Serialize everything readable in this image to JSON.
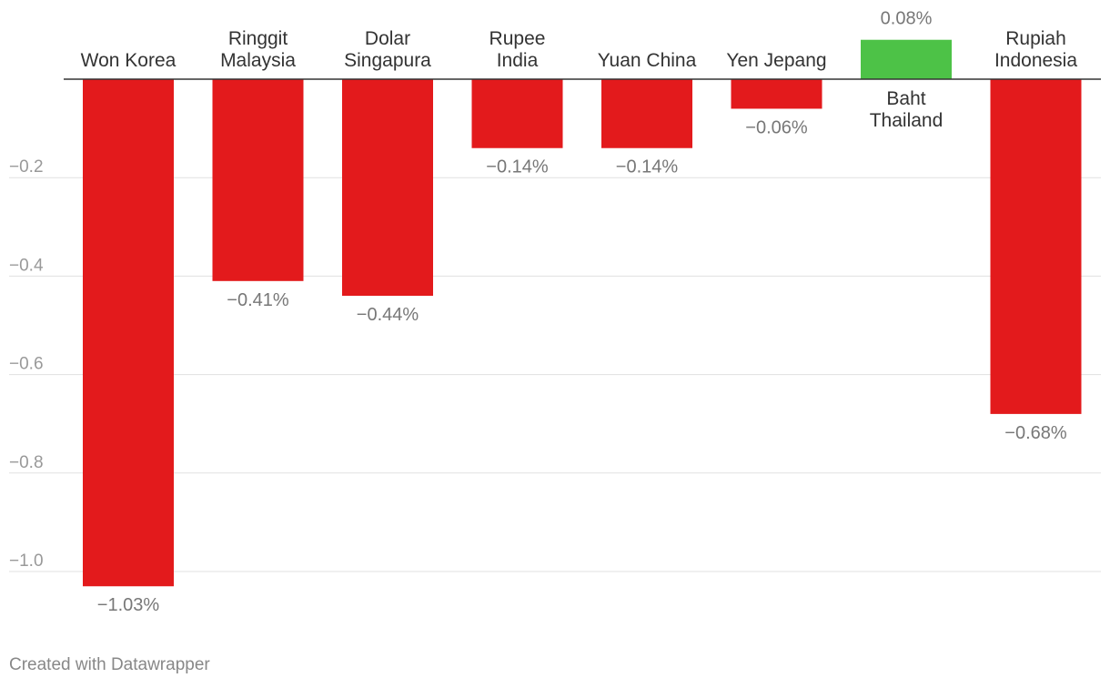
{
  "credit": "Created with Datawrapper",
  "colors": {
    "negative": "#e31a1c",
    "positive": "#4dc247",
    "grid": "#e1e1e1",
    "baseline": "#333333",
    "category_text": "#333333",
    "tick_text": "#999999",
    "value_text": "#777777"
  },
  "chart_data": {
    "type": "bar",
    "title": "",
    "xlabel": "",
    "ylabel": "",
    "categories": [
      [
        "Won Korea"
      ],
      [
        "Ringgit",
        "Malaysia"
      ],
      [
        "Dolar",
        "Singapura"
      ],
      [
        "Rupee",
        "India"
      ],
      [
        "Yuan China"
      ],
      [
        "Yen Jepang"
      ],
      [
        "Baht",
        "Thailand"
      ],
      [
        "Rupiah",
        "Indonesia"
      ]
    ],
    "values": [
      -1.03,
      -0.41,
      -0.44,
      -0.14,
      -0.14,
      -0.06,
      0.08,
      -0.68
    ],
    "value_labels": [
      "−1.03%",
      "−0.41%",
      "−0.44%",
      "−0.14%",
      "−0.14%",
      "−0.06%",
      "0.08%",
      "−0.68%"
    ],
    "yticks": [
      -0.2,
      -0.4,
      -0.6,
      -0.8,
      -1.0
    ],
    "ytick_labels": [
      "−0.2",
      "−0.4",
      "−0.6",
      "−0.8",
      "−1.0"
    ],
    "ylim": [
      -1.1,
      0.08
    ],
    "grid": true,
    "legend": "none"
  }
}
